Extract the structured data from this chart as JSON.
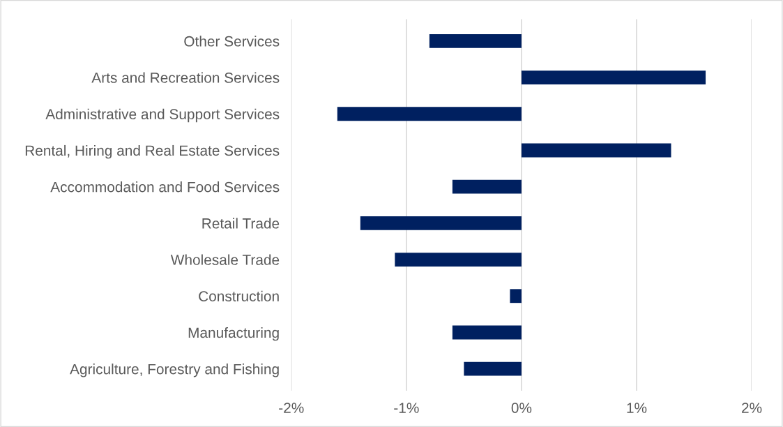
{
  "chart_data": {
    "type": "bar",
    "orientation": "horizontal",
    "categories": [
      "Other Services",
      "Arts and Recreation Services",
      "Administrative and Support Services",
      "Rental, Hiring and Real Estate Services",
      "Accommodation and Food Services",
      "Retail Trade",
      "Wholesale Trade",
      "Construction",
      "Manufacturing",
      "Agriculture, Forestry and Fishing"
    ],
    "values": [
      -0.8,
      1.6,
      -1.6,
      1.3,
      -0.6,
      -1.4,
      -1.1,
      -0.1,
      -0.6,
      -0.5
    ],
    "color": "#002060",
    "xlim": [
      -2,
      2
    ],
    "xticks": [
      {
        "value": -2,
        "label": "-2%"
      },
      {
        "value": -1,
        "label": "-1%"
      },
      {
        "value": 0,
        "label": "0%"
      },
      {
        "value": 1,
        "label": "1%"
      },
      {
        "value": 2,
        "label": "2%"
      }
    ],
    "grid": "x",
    "legend": false
  }
}
